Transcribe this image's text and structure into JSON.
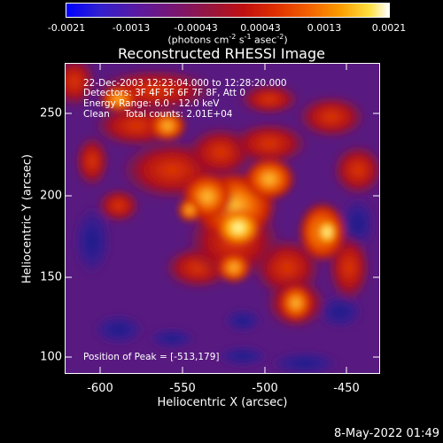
{
  "colorbar": {
    "ticks": [
      "-0.0021",
      "-0.0013",
      "-0.00043",
      "0.00043",
      "0.0013",
      "0.0021"
    ],
    "units_prefix": "(photons cm",
    "units_exp1": "-2",
    "units_mid": " s",
    "units_exp2": "-1",
    "units_mid2": " asec",
    "units_exp3": "-2",
    "units_suffix": ")"
  },
  "title": "Reconstructed RHESSI Image",
  "annotations": {
    "line1": "22-Dec-2003 12:23:04.000 to 12:28:20.000",
    "line2": "Detectors: 3F 4F 5F 6F 7F 8F, Att 0",
    "line3": "Energy Range: 6.0 - 12.0 keV",
    "line4": "Clean     Total counts: 2.01E+04",
    "peak": "Position of Peak = [-513,179]"
  },
  "axes": {
    "xlabel": "Heliocentric X (arcsec)",
    "ylabel": "Heliocentric Y (arcsec)",
    "xticks": [
      "-600",
      "-550",
      "-500",
      "-450"
    ],
    "yticks": [
      "250",
      "200",
      "150",
      "100"
    ],
    "xlim": [
      -618,
      -427
    ],
    "ylim": [
      87,
      275
    ]
  },
  "timestamp": "8-May-2022 01:49"
}
